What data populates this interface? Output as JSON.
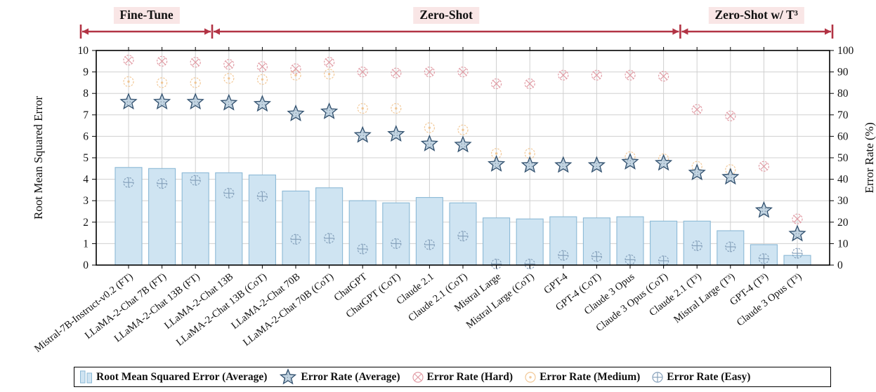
{
  "header": {
    "sections": [
      {
        "label": "Fine-Tune",
        "from": 0,
        "to": 2
      },
      {
        "label": "Zero-Shot",
        "from": 3,
        "to": 16
      },
      {
        "label": "Zero-Shot w/ T³",
        "from": 17,
        "to": 20
      }
    ]
  },
  "chart_data": {
    "type": "bar+scatter",
    "title": "",
    "categories": [
      "Mistral-7B-Instruct-v0.2 (FT)",
      "LLaMA-2-Chat 7B (FT)",
      "LLaMA-2-Chat 13B (FT)",
      "LLaMA-2-Chat 13B",
      "LLaMA-2-Chat 13B (CoT)",
      "LLaMA-2-Chat 70B",
      "LLaMA-2-Chat 70B (CoT)",
      "ChatGPT",
      "ChatGPT (CoT)",
      "Claude 2.1",
      "Claude 2.1 (CoT)",
      "Mistral Large",
      "Mistral Large (CoT)",
      "GPT-4",
      "GPT-4 (CoT)",
      "Claude 3 Opus",
      "Claude 3 Opus (CoT)",
      "Claude 2.1 (T³)",
      "Mistral Large (T³)",
      "GPT-4 (T³)",
      "Claude 3 Opus (T³)"
    ],
    "left_axis": {
      "label": "Root Mean Squared Error",
      "min": 0,
      "max": 10,
      "tick_step": 1
    },
    "right_axis": {
      "label": "Error Rate (%)",
      "min": 0,
      "max": 100,
      "tick_step": 10
    },
    "grid": true,
    "legend_position": "bottom",
    "series": [
      {
        "name": "Root Mean Squared Error (Average)",
        "type": "bar",
        "axis": "left",
        "values": [
          4.55,
          4.5,
          4.3,
          4.3,
          4.2,
          3.45,
          3.6,
          3.0,
          2.9,
          3.15,
          2.9,
          2.2,
          2.15,
          2.25,
          2.2,
          2.25,
          2.05,
          2.05,
          1.6,
          0.95,
          0.45
        ]
      },
      {
        "name": "Error Rate (Average)",
        "type": "star",
        "axis": "right",
        "values": [
          76,
          76,
          76,
          75.5,
          75,
          70.5,
          71.5,
          60.5,
          61,
          56.5,
          56,
          47,
          46.5,
          46.5,
          46.5,
          48,
          47.5,
          43,
          41,
          25.5,
          14.5
        ]
      },
      {
        "name": "Error Rate (Hard)",
        "type": "circle-x",
        "axis": "right",
        "values": [
          95.5,
          95,
          94.5,
          93.5,
          92.5,
          91.5,
          94.5,
          90,
          89.5,
          90,
          90,
          84.5,
          84.5,
          88.5,
          88.5,
          88.5,
          88,
          72.5,
          69.5,
          46,
          21.5
        ]
      },
      {
        "name": "Error Rate (Medium)",
        "type": "circle-dot",
        "axis": "right",
        "values": [
          85.5,
          85,
          85,
          87,
          86.5,
          88.5,
          89,
          73,
          73,
          64,
          63,
          52,
          52,
          null,
          null,
          50.5,
          49.5,
          46,
          44.5,
          null,
          null
        ]
      },
      {
        "name": "Error Rate (Easy)",
        "type": "circle-plus",
        "axis": "right",
        "values": [
          38.5,
          38,
          39.5,
          33.5,
          32,
          12,
          12.5,
          7.5,
          10,
          9.5,
          13.5,
          0.5,
          0.5,
          4.5,
          4,
          2.5,
          2,
          9,
          8.5,
          3,
          5.5
        ]
      }
    ]
  },
  "legend": {
    "items": [
      {
        "label": "Root Mean Squared Error (Average)",
        "marker": "bars"
      },
      {
        "label": "Error Rate (Average)",
        "marker": "star"
      },
      {
        "label": "Error Rate (Hard)",
        "marker": "circle-x"
      },
      {
        "label": "Error Rate (Medium)",
        "marker": "circle-dot"
      },
      {
        "label": "Error Rate (Easy)",
        "marker": "circle-plus"
      }
    ]
  },
  "colors": {
    "arrow": "#b23344",
    "section_bg": "#f9e6e6",
    "bar_fill": "#cfe4f2",
    "bar_stroke": "#8bb9d6",
    "star_stroke": "#31506e",
    "star_fill": "#c2d4e2",
    "star_dot": "#8498a8",
    "hard": "#dd8d97",
    "medium": "#f0bf85",
    "easy": "#7e9ab6",
    "grid": "#d0d0d0",
    "frame": "#000000"
  }
}
